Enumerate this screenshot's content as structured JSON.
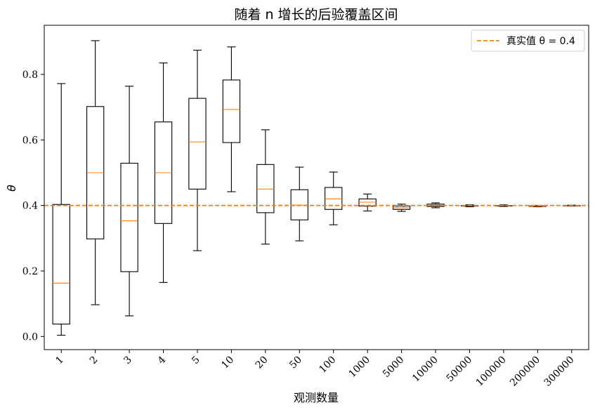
{
  "chart_data": {
    "type": "box",
    "title": "随着 n 增长的后验覆盖区间",
    "xlabel": "观测数量",
    "ylabel": "θ",
    "ylim": [
      -0.04,
      0.95
    ],
    "yticks": [
      0.0,
      0.2,
      0.4,
      0.6,
      0.8
    ],
    "ytick_labels": [
      "0.0",
      "0.2",
      "0.4",
      "0.6",
      "0.8"
    ],
    "categories": [
      "1",
      "2",
      "3",
      "4",
      "5",
      "10",
      "20",
      "50",
      "100",
      "1000",
      "5000",
      "10000",
      "50000",
      "100000",
      "200000",
      "300000"
    ],
    "boxes": [
      {
        "whislo": 0.004,
        "q1": 0.038,
        "med": 0.163,
        "q3": 0.403,
        "whishi": 0.772
      },
      {
        "whislo": 0.097,
        "q1": 0.298,
        "med": 0.5,
        "q3": 0.702,
        "whishi": 0.903
      },
      {
        "whislo": 0.063,
        "q1": 0.198,
        "med": 0.353,
        "q3": 0.529,
        "whishi": 0.764
      },
      {
        "whislo": 0.165,
        "q1": 0.345,
        "med": 0.5,
        "q3": 0.655,
        "whishi": 0.835
      },
      {
        "whislo": 0.262,
        "q1": 0.45,
        "med": 0.594,
        "q3": 0.727,
        "whishi": 0.874
      },
      {
        "whislo": 0.442,
        "q1": 0.592,
        "med": 0.693,
        "q3": 0.783,
        "whishi": 0.884
      },
      {
        "whislo": 0.282,
        "q1": 0.378,
        "med": 0.45,
        "q3": 0.525,
        "whishi": 0.631
      },
      {
        "whislo": 0.292,
        "q1": 0.356,
        "med": 0.401,
        "q3": 0.448,
        "whishi": 0.517
      },
      {
        "whislo": 0.341,
        "q1": 0.388,
        "med": 0.42,
        "q3": 0.455,
        "whishi": 0.502
      },
      {
        "whislo": 0.383,
        "q1": 0.398,
        "med": 0.41,
        "q3": 0.42,
        "whishi": 0.435
      },
      {
        "whislo": 0.382,
        "q1": 0.388,
        "med": 0.393,
        "q3": 0.398,
        "whishi": 0.404
      },
      {
        "whislo": 0.393,
        "q1": 0.397,
        "med": 0.4,
        "q3": 0.404,
        "whishi": 0.408
      },
      {
        "whislo": 0.396,
        "q1": 0.398,
        "med": 0.399,
        "q3": 0.4,
        "whishi": 0.402
      },
      {
        "whislo": 0.397,
        "q1": 0.399,
        "med": 0.4,
        "q3": 0.4,
        "whishi": 0.402
      },
      {
        "whislo": 0.396,
        "q1": 0.397,
        "med": 0.398,
        "q3": 0.399,
        "whishi": 0.4
      },
      {
        "whislo": 0.398,
        "q1": 0.399,
        "med": 0.399,
        "q3": 0.4,
        "whishi": 0.401
      }
    ],
    "reference_line": {
      "value": 0.4,
      "label": "真实值 θ = 0.4",
      "color": "#ff7f0e",
      "style": "dashed"
    },
    "median_color": "#ff7f0e",
    "box_color": "#000000",
    "legend_position": "top-right",
    "grid": false
  }
}
